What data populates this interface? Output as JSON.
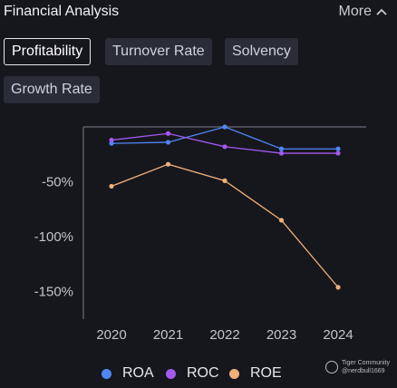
{
  "header": {
    "title": "Financial Analysis",
    "more_label": "More",
    "more_icon": "chevron-up-icon"
  },
  "tabs": [
    {
      "label": "Profitability",
      "active": true
    },
    {
      "label": "Turnover Rate",
      "active": false
    },
    {
      "label": "Solvency",
      "active": false
    },
    {
      "label": "Growth Rate",
      "active": false
    }
  ],
  "chart_data": {
    "type": "line",
    "title": "",
    "xlabel": "",
    "ylabel": "",
    "x": [
      "2020",
      "2021",
      "2022",
      "2023",
      "2024"
    ],
    "y_ticks": [
      -50,
      -100,
      -150
    ],
    "y_tick_labels": [
      "-50%",
      "-100%",
      "-150%"
    ],
    "ylim": [
      -175,
      0
    ],
    "grid": false,
    "legend_position": "bottom",
    "series": [
      {
        "name": "ROA",
        "color": "#4f86f7",
        "values": [
          -15,
          -14,
          0,
          -20,
          -20
        ]
      },
      {
        "name": "ROC",
        "color": "#a259f0",
        "values": [
          -12,
          -6,
          -18,
          -24,
          -24
        ]
      },
      {
        "name": "ROE",
        "color": "#f0b07a",
        "values": [
          -54,
          -34,
          -49,
          -85,
          -146
        ]
      }
    ]
  },
  "watermark": {
    "brand": "Tiger Community",
    "user": "@nerdbull1669"
  }
}
